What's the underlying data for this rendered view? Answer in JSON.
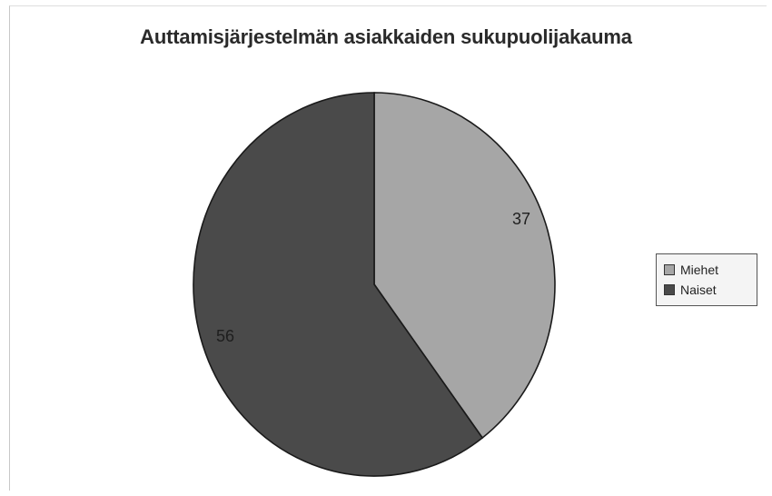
{
  "chart_data": {
    "type": "pie",
    "title": "Auttamisjärjestelmän asiakkaiden sukupuolijakauma",
    "slices": [
      {
        "label": "Naiset",
        "value": 56,
        "display": "56",
        "color": "#4a4a4a"
      },
      {
        "label": "Miehet",
        "value": 37,
        "display": "37",
        "color": "#a6a6a6"
      }
    ],
    "legend_position": "right",
    "start": "top",
    "direction": "clockwise",
    "largest_slice": "Naiset"
  }
}
